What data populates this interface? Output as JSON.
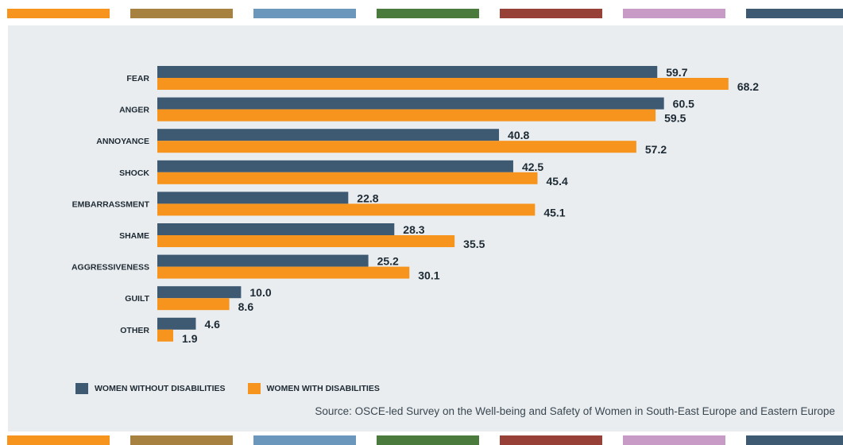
{
  "stripes": {
    "colors": [
      "#f7941d",
      "#a6813f",
      "#6b97bd",
      "#4a7a3c",
      "#964038",
      "#c89bc6",
      "#3e5a72"
    ]
  },
  "chart_data": {
    "type": "bar",
    "orientation": "horizontal",
    "categories": [
      "FEAR",
      "ANGER",
      "ANNOYANCE",
      "SHOCK",
      "EMBARRASSMENT",
      "SHAME",
      "AGGRESSIVENESS",
      "GUILT",
      "OTHER"
    ],
    "series": [
      {
        "name": "WOMEN WITHOUT DISABILITIES",
        "color": "#3e5a72",
        "values": [
          59.7,
          60.5,
          40.8,
          42.5,
          22.8,
          28.3,
          25.2,
          10.0,
          4.6
        ],
        "labels": [
          "59.7",
          "60.5",
          "40.8",
          "42.5",
          "22.8",
          "28.3",
          "25.2",
          "10.0",
          "4.6"
        ]
      },
      {
        "name": "WOMEN WITH DISABILITIES",
        "color": "#f7941d",
        "values": [
          68.2,
          59.5,
          57.2,
          45.4,
          45.1,
          35.5,
          30.1,
          8.6,
          1.9
        ],
        "labels": [
          "68.2",
          "59.5",
          "57.2",
          "45.4",
          "45.1",
          "35.5",
          "30.1",
          "8.6",
          "1.9"
        ]
      }
    ],
    "legend_position": "bottom-left",
    "grid": false
  },
  "legend": {
    "without_label": "WOMEN WITHOUT DISABILITIES",
    "with_label": "WOMEN WITH DISABILITIES"
  },
  "source": "Source: OSCE-led Survey on the Well-being and Safety of Women in South-East Europe and Eastern Europe"
}
